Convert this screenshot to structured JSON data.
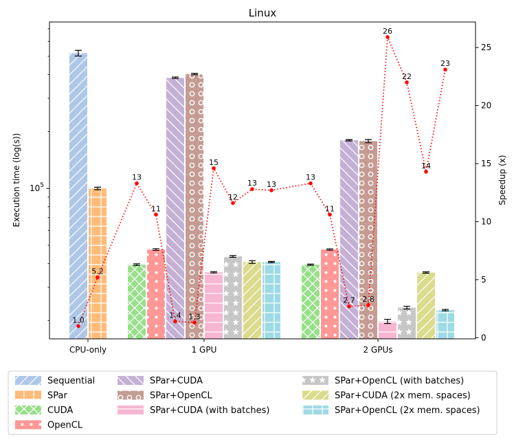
{
  "chart_data": {
    "type": "bar",
    "title": "Linux",
    "ylabel": "Execution time (log(s))",
    "y2label": "Speedup (x)",
    "yscale": "log",
    "ylim": [
      16000,
      760000
    ],
    "y2lim": [
      -0.1,
      27.2
    ],
    "groups": [
      "CPU-only",
      "1 GPU",
      "2 GPUs"
    ],
    "y_tick_labels": [
      {
        "value": 100000,
        "label": "10^5"
      }
    ],
    "y2_ticks": [
      0,
      5,
      10,
      15,
      20,
      25
    ],
    "legend": {
      "position": "bottom",
      "columns": 3
    },
    "series": [
      {
        "name": "Sequential",
        "group": "CPU-only",
        "value": 520000,
        "err": 18000,
        "color": "#aec7e8",
        "pattern": "diag-right",
        "speedup": 1.0,
        "speedup_label": "1.0"
      },
      {
        "name": "SPar",
        "group": "CPU-only",
        "value": 100000,
        "err": 1500,
        "color": "#ffbb78",
        "pattern": "grid",
        "speedup": 5.2,
        "speedup_label": "5.2"
      },
      {
        "name": "CUDA",
        "group": "1 GPU",
        "value": 39500,
        "err": 400,
        "color": "#98df8a",
        "pattern": "cross",
        "speedup": 13.3,
        "speedup_label": "13"
      },
      {
        "name": "OpenCL",
        "group": "1 GPU",
        "value": 47500,
        "err": 500,
        "color": "#ff9896",
        "pattern": "dots",
        "speedup": 10.6,
        "speedup_label": "11"
      },
      {
        "name": "SPar+CUDA",
        "group": "1 GPU",
        "value": 385000,
        "err": 3500,
        "color": "#c5b0d5",
        "pattern": "diag-left",
        "speedup": 1.4,
        "speedup_label": "1.4"
      },
      {
        "name": "SPar+OpenCL",
        "group": "1 GPU",
        "value": 403000,
        "err": 3500,
        "color": "#c49c94",
        "pattern": "circles",
        "speedup": 1.3,
        "speedup_label": "1.3"
      },
      {
        "name": "SPar+CUDA (with batches)",
        "group": "1 GPU",
        "value": 36000,
        "err": 300,
        "color": "#f7b6d2",
        "pattern": "hlines",
        "speedup": 14.6,
        "speedup_label": "15"
      },
      {
        "name": "SPar+OpenCL (with batches)",
        "group": "1 GPU",
        "value": 43700,
        "err": 500,
        "color": "#c7c7c7",
        "pattern": "stars",
        "speedup": 11.6,
        "speedup_label": "12"
      },
      {
        "name": "SPar+CUDA (2x mem. spaces)",
        "group": "1 GPU",
        "value": 40800,
        "err": 700,
        "color": "#dbdb8d",
        "pattern": "diag-right",
        "speedup": 12.8,
        "speedup_label": "13"
      },
      {
        "name": "SPar+OpenCL (2x mem. spaces)",
        "group": "1 GPU",
        "value": 40800,
        "err": 300,
        "color": "#9edae5",
        "pattern": "grid",
        "speedup": 12.7,
        "speedup_label": "13"
      },
      {
        "name": "CUDA",
        "group": "2 GPUs",
        "value": 39500,
        "err": 300,
        "color": "#98df8a",
        "pattern": "cross",
        "speedup": 13.3,
        "speedup_label": "13"
      },
      {
        "name": "OpenCL",
        "group": "2 GPUs",
        "value": 47500,
        "err": 400,
        "color": "#ff9896",
        "pattern": "dots",
        "speedup": 10.6,
        "speedup_label": "11"
      },
      {
        "name": "SPar+CUDA",
        "group": "2 GPUs",
        "value": 180000,
        "err": 1500,
        "color": "#c5b0d5",
        "pattern": "diag-left",
        "speedup": 2.7,
        "speedup_label": "2.7"
      },
      {
        "name": "SPar+OpenCL",
        "group": "2 GPUs",
        "value": 178000,
        "err": 3500,
        "color": "#c49c94",
        "pattern": "circles",
        "speedup": 2.8,
        "speedup_label": "2.8"
      },
      {
        "name": "SPar+CUDA (with batches)",
        "group": "2 GPUs",
        "value": 19800,
        "err": 500,
        "color": "#f7b6d2",
        "pattern": "hlines",
        "speedup": 25.9,
        "speedup_label": "26"
      },
      {
        "name": "SPar+OpenCL (with batches)",
        "group": "2 GPUs",
        "value": 23400,
        "err": 400,
        "color": "#c7c7c7",
        "pattern": "stars",
        "speedup": 22.0,
        "speedup_label": "22"
      },
      {
        "name": "SPar+CUDA (2x mem. spaces)",
        "group": "2 GPUs",
        "value": 35900,
        "err": 300,
        "color": "#dbdb8d",
        "pattern": "diag-right",
        "speedup": 14.3,
        "speedup_label": "14"
      },
      {
        "name": "SPar+OpenCL (2x mem. spaces)",
        "group": "2 GPUs",
        "value": 22700,
        "err": 200,
        "color": "#9edae5",
        "pattern": "grid",
        "speedup": 23.1,
        "speedup_label": "23"
      }
    ],
    "legend_entries": [
      {
        "name": "Sequential",
        "color": "#aec7e8",
        "pattern": "diag-right"
      },
      {
        "name": "SPar",
        "color": "#ffbb78",
        "pattern": "grid"
      },
      {
        "name": "CUDA",
        "color": "#98df8a",
        "pattern": "cross"
      },
      {
        "name": "OpenCL",
        "color": "#ff9896",
        "pattern": "dots"
      },
      {
        "name": "SPar+CUDA",
        "color": "#c5b0d5",
        "pattern": "diag-left"
      },
      {
        "name": "SPar+OpenCL",
        "color": "#c49c94",
        "pattern": "circles"
      },
      {
        "name": "SPar+CUDA (with batches)",
        "color": "#f7b6d2",
        "pattern": "hlines"
      },
      {
        "name": "SPar+OpenCL (with batches)",
        "color": "#c7c7c7",
        "pattern": "stars"
      },
      {
        "name": "SPar+CUDA (2x mem. spaces)",
        "color": "#dbdb8d",
        "pattern": "diag-right"
      },
      {
        "name": "SPar+OpenCL (2x mem. spaces)",
        "color": "#9edae5",
        "pattern": "grid"
      }
    ],
    "speedup_line": {
      "color": "#ff0000",
      "style": "dotted",
      "marker": "dot"
    }
  }
}
